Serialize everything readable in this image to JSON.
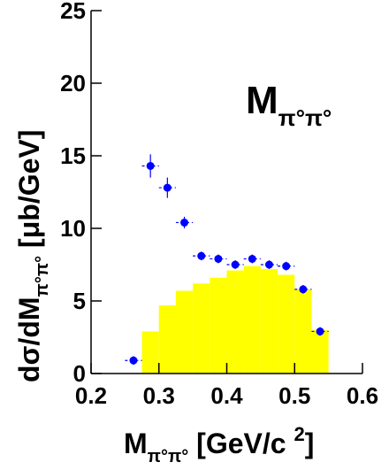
{
  "chart_data": {
    "type": "scatter",
    "annotation": {
      "main": "M",
      "sub": "π°π°"
    },
    "ylabel": {
      "main": "dσ/dM",
      "sub": "π°π°",
      "rest": " [μb/GeV]"
    },
    "xlabel": {
      "main": "M",
      "sub": "π°π°",
      "rest": " [GeV/c ",
      "sup": "2",
      "end": "]"
    },
    "xlim": [
      0.2,
      0.6
    ],
    "ylim": [
      0,
      25
    ],
    "xticks": [
      0.2,
      0.3,
      0.4,
      0.5,
      0.6
    ],
    "yticks": [
      0,
      5,
      10,
      15,
      20,
      25
    ],
    "histogram": {
      "type": "histogram",
      "color": "#ffff00",
      "bins": [
        0.25,
        0.275,
        0.3,
        0.325,
        0.35,
        0.375,
        0.4,
        0.425,
        0.45,
        0.475,
        0.5,
        0.525,
        0.55
      ],
      "values": [
        0,
        2.9,
        4.7,
        5.7,
        6.2,
        6.6,
        7.1,
        7.4,
        7.2,
        6.8,
        5.8,
        3.0
      ]
    },
    "series": [
      {
        "color": "#0000ff",
        "x": [
          0.2625,
          0.2875,
          0.3125,
          0.3375,
          0.3625,
          0.3875,
          0.4125,
          0.4375,
          0.4625,
          0.4875,
          0.5125,
          0.5375
        ],
        "values": [
          0.9,
          14.3,
          12.8,
          10.4,
          8.1,
          7.9,
          7.5,
          7.9,
          7.5,
          7.4,
          5.8,
          2.9
        ],
        "yerr": [
          0.3,
          0.8,
          0.7,
          0.4,
          0.3,
          0.3,
          0.3,
          0.3,
          0.3,
          0.3,
          0.3,
          0.3
        ],
        "xerr": [
          0.0125,
          0.0125,
          0.0125,
          0.0125,
          0.0125,
          0.0125,
          0.0125,
          0.0125,
          0.0125,
          0.0125,
          0.0125,
          0.0125
        ]
      }
    ]
  }
}
